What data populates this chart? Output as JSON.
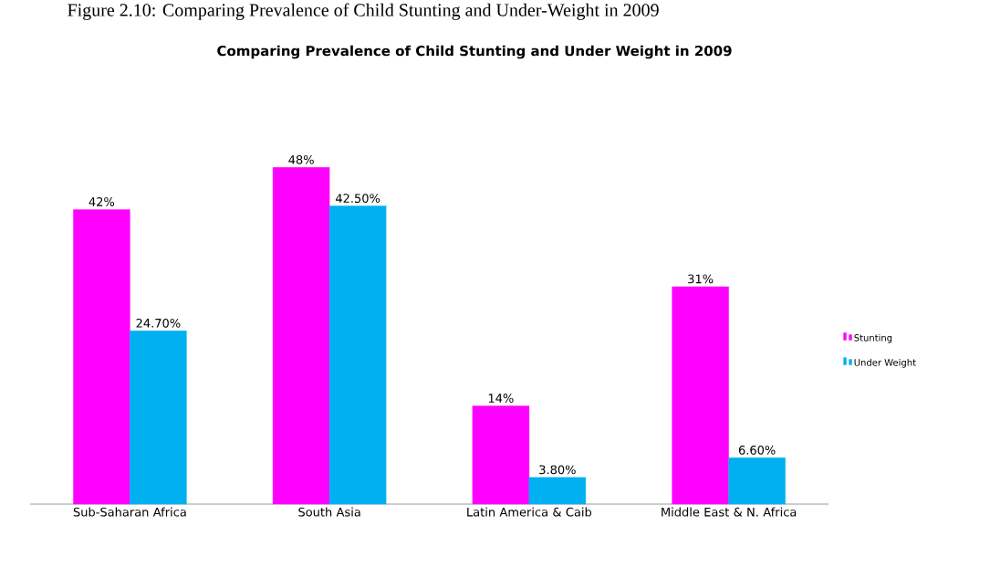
{
  "chart_data": {
    "type": "bar",
    "title": "Comparing Prevalence of Child Stunting and Under Weight in 2009",
    "annotations": [
      "Figure 2.10: Comparing Prevalence of Child Stunting and Under-Weight in 2009"
    ],
    "categories": [
      "Sub-Saharan Africa",
      "South Asia",
      "Latin America & Caib",
      "Middle East & N. Africa"
    ],
    "series": [
      {
        "name": "Stunting",
        "color": "#ff00ff",
        "values": [
          42,
          48,
          14,
          31
        ],
        "value_labels": [
          "42%",
          "48%",
          "14%",
          "31%"
        ]
      },
      {
        "name": "Under Weight",
        "color": "#00b0f0",
        "values": [
          24.7,
          42.5,
          3.8,
          6.6
        ],
        "value_labels": [
          "24.70%",
          "42.50%",
          "3.80%",
          "6.60%"
        ]
      }
    ],
    "legend": "right"
  }
}
